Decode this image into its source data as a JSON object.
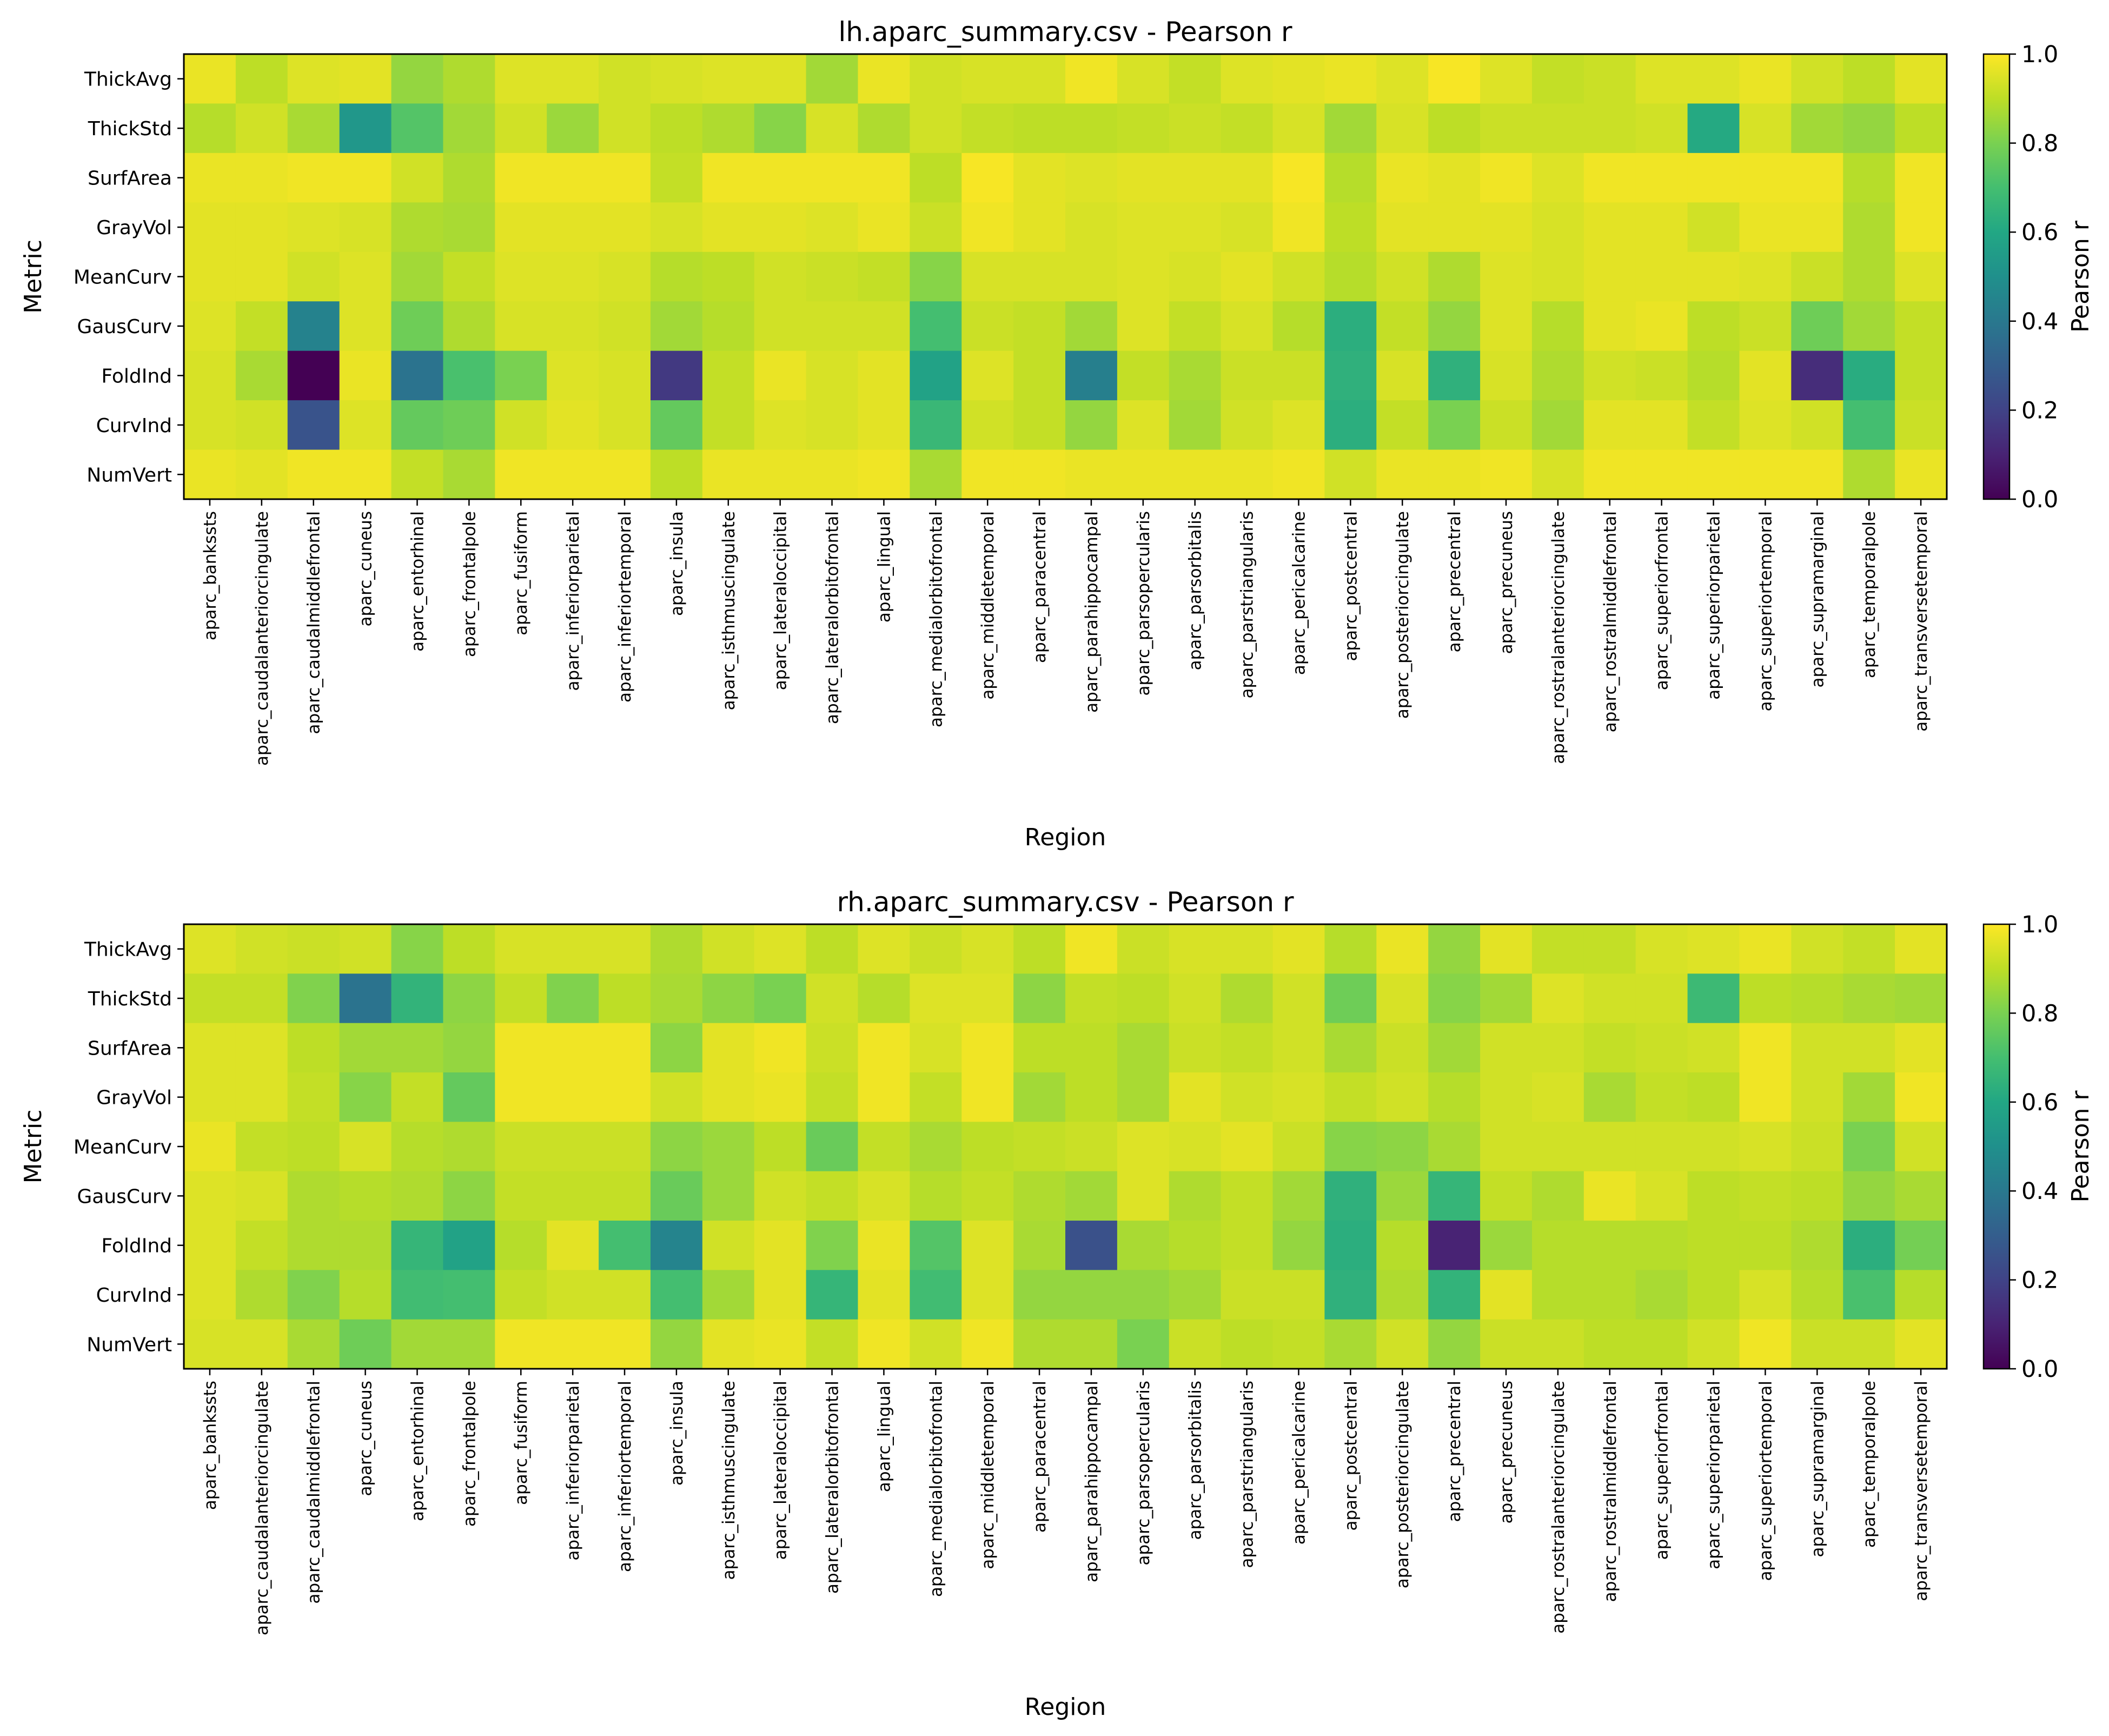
{
  "colorscale": "viridis",
  "chart_data": [
    {
      "type": "heatmap",
      "title": "lh.aparc_summary.csv - Pearson r",
      "xlabel": "Region",
      "ylabel": "Metric",
      "colorbar_label": "Pearson r",
      "vmin": 0.0,
      "vmax": 1.0,
      "colorbar_ticks": [
        "0.0",
        "0.2",
        "0.4",
        "0.6",
        "0.8",
        "1.0"
      ],
      "rows": [
        "ThickAvg",
        "ThickStd",
        "SurfArea",
        "GrayVol",
        "MeanCurv",
        "GausCurv",
        "FoldInd",
        "CurvInd",
        "NumVert"
      ],
      "columns": [
        "aparc_bankssts",
        "aparc_caudalanteriorcingulate",
        "aparc_caudalmiddlefrontal",
        "aparc_cuneus",
        "aparc_entorhinal",
        "aparc_frontalpole",
        "aparc_fusiform",
        "aparc_inferiorparietal",
        "aparc_inferiortemporal",
        "aparc_insula",
        "aparc_isthmuscingulate",
        "aparc_lateraloccipital",
        "aparc_lateralorbitofrontal",
        "aparc_lingual",
        "aparc_medialorbitofrontal",
        "aparc_middletemporal",
        "aparc_paracentral",
        "aparc_parahippocampal",
        "aparc_parsopercularis",
        "aparc_parsorbitalis",
        "aparc_parstriangularis",
        "aparc_pericalcarine",
        "aparc_postcentral",
        "aparc_posteriorcingulate",
        "aparc_precentral",
        "aparc_precuneus",
        "aparc_rostralanteriorcingulate",
        "aparc_rostralmiddlefrontal",
        "aparc_superiorfrontal",
        "aparc_superiorparietal",
        "aparc_superiortemporal",
        "aparc_supramarginal",
        "aparc_temporalpole",
        "aparc_transversetemporal"
      ],
      "values": [
        [
          0.97,
          0.9,
          0.95,
          0.96,
          0.84,
          0.88,
          0.95,
          0.95,
          0.93,
          0.94,
          0.95,
          0.95,
          0.86,
          0.97,
          0.93,
          0.94,
          0.94,
          0.98,
          0.94,
          0.91,
          0.95,
          0.96,
          0.97,
          0.95,
          0.99,
          0.95,
          0.91,
          0.92,
          0.95,
          0.95,
          0.97,
          0.93,
          0.9,
          0.96
        ],
        [
          0.89,
          0.93,
          0.87,
          0.53,
          0.73,
          0.86,
          0.93,
          0.85,
          0.93,
          0.9,
          0.88,
          0.82,
          0.94,
          0.88,
          0.93,
          0.91,
          0.9,
          0.9,
          0.91,
          0.92,
          0.91,
          0.94,
          0.86,
          0.94,
          0.9,
          0.92,
          0.92,
          0.92,
          0.93,
          0.61,
          0.94,
          0.86,
          0.84,
          0.9
        ],
        [
          0.97,
          0.97,
          0.98,
          0.98,
          0.93,
          0.88,
          0.98,
          0.98,
          0.98,
          0.91,
          0.98,
          0.98,
          0.98,
          0.98,
          0.9,
          0.99,
          0.96,
          0.95,
          0.96,
          0.96,
          0.96,
          0.99,
          0.89,
          0.97,
          0.96,
          0.98,
          0.95,
          0.98,
          0.98,
          0.98,
          0.98,
          0.98,
          0.89,
          0.98
        ],
        [
          0.96,
          0.96,
          0.95,
          0.94,
          0.88,
          0.87,
          0.96,
          0.96,
          0.96,
          0.94,
          0.96,
          0.96,
          0.95,
          0.97,
          0.92,
          0.98,
          0.96,
          0.94,
          0.95,
          0.95,
          0.94,
          0.98,
          0.9,
          0.96,
          0.96,
          0.96,
          0.94,
          0.96,
          0.96,
          0.93,
          0.97,
          0.97,
          0.88,
          0.98
        ],
        [
          0.96,
          0.96,
          0.93,
          0.95,
          0.86,
          0.91,
          0.95,
          0.95,
          0.94,
          0.89,
          0.9,
          0.93,
          0.92,
          0.91,
          0.82,
          0.94,
          0.94,
          0.94,
          0.95,
          0.94,
          0.96,
          0.93,
          0.89,
          0.93,
          0.88,
          0.95,
          0.94,
          0.96,
          0.96,
          0.96,
          0.95,
          0.92,
          0.88,
          0.95
        ],
        [
          0.95,
          0.91,
          0.44,
          0.95,
          0.78,
          0.88,
          0.94,
          0.94,
          0.93,
          0.86,
          0.89,
          0.93,
          0.93,
          0.93,
          0.7,
          0.92,
          0.91,
          0.86,
          0.95,
          0.91,
          0.94,
          0.89,
          0.63,
          0.91,
          0.84,
          0.95,
          0.89,
          0.96,
          0.97,
          0.9,
          0.92,
          0.78,
          0.86,
          0.91
        ],
        [
          0.94,
          0.87,
          0.0,
          0.97,
          0.38,
          0.71,
          0.8,
          0.95,
          0.94,
          0.17,
          0.91,
          0.97,
          0.94,
          0.96,
          0.58,
          0.95,
          0.91,
          0.43,
          0.91,
          0.87,
          0.92,
          0.92,
          0.64,
          0.94,
          0.64,
          0.94,
          0.88,
          0.93,
          0.92,
          0.89,
          0.96,
          0.13,
          0.62,
          0.91
        ],
        [
          0.94,
          0.93,
          0.26,
          0.95,
          0.76,
          0.78,
          0.93,
          0.96,
          0.94,
          0.76,
          0.91,
          0.95,
          0.94,
          0.96,
          0.67,
          0.93,
          0.91,
          0.84,
          0.95,
          0.86,
          0.93,
          0.95,
          0.63,
          0.91,
          0.8,
          0.92,
          0.86,
          0.96,
          0.96,
          0.91,
          0.95,
          0.93,
          0.7,
          0.92
        ],
        [
          0.97,
          0.96,
          0.98,
          0.98,
          0.91,
          0.87,
          0.98,
          0.98,
          0.98,
          0.9,
          0.97,
          0.97,
          0.97,
          0.98,
          0.87,
          0.98,
          0.98,
          0.97,
          0.97,
          0.97,
          0.97,
          0.98,
          0.93,
          0.97,
          0.97,
          0.98,
          0.94,
          0.98,
          0.98,
          0.98,
          0.98,
          0.98,
          0.88,
          0.97
        ]
      ]
    },
    {
      "type": "heatmap",
      "title": "rh.aparc_summary.csv - Pearson r",
      "xlabel": "Region",
      "ylabel": "Metric",
      "colorbar_label": "Pearson r",
      "vmin": 0.0,
      "vmax": 1.0,
      "colorbar_ticks": [
        "0.0",
        "0.2",
        "0.4",
        "0.6",
        "0.8",
        "1.0"
      ],
      "rows": [
        "ThickAvg",
        "ThickStd",
        "SurfArea",
        "GrayVol",
        "MeanCurv",
        "GausCurv",
        "FoldInd",
        "CurvInd",
        "NumVert"
      ],
      "columns": [
        "aparc_bankssts",
        "aparc_caudalanteriorcingulate",
        "aparc_caudalmiddlefrontal",
        "aparc_cuneus",
        "aparc_entorhinal",
        "aparc_frontalpole",
        "aparc_fusiform",
        "aparc_inferiorparietal",
        "aparc_inferiortemporal",
        "aparc_insula",
        "aparc_isthmuscingulate",
        "aparc_lateraloccipital",
        "aparc_lateralorbitofrontal",
        "aparc_lingual",
        "aparc_medialorbitofrontal",
        "aparc_middletemporal",
        "aparc_paracentral",
        "aparc_parahippocampal",
        "aparc_parsopercularis",
        "aparc_parsorbitalis",
        "aparc_parstriangularis",
        "aparc_pericalcarine",
        "aparc_postcentral",
        "aparc_posteriorcingulate",
        "aparc_precentral",
        "aparc_precuneus",
        "aparc_rostralanteriorcingulate",
        "aparc_rostralmiddlefrontal",
        "aparc_superiorfrontal",
        "aparc_superiorparietal",
        "aparc_superiortemporal",
        "aparc_supramarginal",
        "aparc_temporalpole",
        "aparc_transversetemporal"
      ],
      "values": [
        [
          0.95,
          0.93,
          0.92,
          0.93,
          0.82,
          0.9,
          0.94,
          0.94,
          0.94,
          0.88,
          0.93,
          0.95,
          0.9,
          0.95,
          0.92,
          0.94,
          0.9,
          0.98,
          0.92,
          0.94,
          0.94,
          0.96,
          0.89,
          0.97,
          0.84,
          0.96,
          0.91,
          0.91,
          0.94,
          0.95,
          0.97,
          0.93,
          0.91,
          0.96
        ],
        [
          0.91,
          0.91,
          0.81,
          0.38,
          0.65,
          0.83,
          0.91,
          0.81,
          0.9,
          0.87,
          0.83,
          0.8,
          0.93,
          0.89,
          0.95,
          0.95,
          0.83,
          0.91,
          0.9,
          0.93,
          0.88,
          0.93,
          0.78,
          0.94,
          0.82,
          0.86,
          0.95,
          0.93,
          0.93,
          0.68,
          0.9,
          0.89,
          0.87,
          0.86
        ],
        [
          0.95,
          0.95,
          0.9,
          0.86,
          0.86,
          0.84,
          0.98,
          0.98,
          0.98,
          0.83,
          0.96,
          0.98,
          0.92,
          0.98,
          0.94,
          0.98,
          0.9,
          0.9,
          0.87,
          0.92,
          0.91,
          0.93,
          0.87,
          0.92,
          0.86,
          0.93,
          0.93,
          0.91,
          0.92,
          0.93,
          0.98,
          0.93,
          0.93,
          0.96
        ],
        [
          0.95,
          0.95,
          0.91,
          0.82,
          0.91,
          0.76,
          0.98,
          0.98,
          0.98,
          0.93,
          0.96,
          0.97,
          0.91,
          0.98,
          0.91,
          0.98,
          0.86,
          0.9,
          0.87,
          0.96,
          0.93,
          0.94,
          0.91,
          0.93,
          0.89,
          0.93,
          0.94,
          0.87,
          0.91,
          0.9,
          0.98,
          0.93,
          0.86,
          0.98
        ],
        [
          0.97,
          0.91,
          0.9,
          0.94,
          0.89,
          0.88,
          0.92,
          0.92,
          0.92,
          0.83,
          0.85,
          0.9,
          0.77,
          0.91,
          0.87,
          0.9,
          0.91,
          0.92,
          0.95,
          0.94,
          0.96,
          0.92,
          0.82,
          0.83,
          0.87,
          0.93,
          0.93,
          0.93,
          0.93,
          0.93,
          0.94,
          0.92,
          0.8,
          0.93
        ],
        [
          0.95,
          0.94,
          0.88,
          0.89,
          0.88,
          0.83,
          0.91,
          0.91,
          0.91,
          0.77,
          0.85,
          0.93,
          0.91,
          0.94,
          0.89,
          0.91,
          0.88,
          0.86,
          0.95,
          0.88,
          0.91,
          0.86,
          0.64,
          0.85,
          0.66,
          0.91,
          0.88,
          0.97,
          0.94,
          0.9,
          0.91,
          0.9,
          0.84,
          0.87
        ],
        [
          0.95,
          0.91,
          0.88,
          0.88,
          0.66,
          0.58,
          0.89,
          0.96,
          0.7,
          0.45,
          0.93,
          0.96,
          0.81,
          0.97,
          0.73,
          0.95,
          0.87,
          0.25,
          0.87,
          0.89,
          0.91,
          0.84,
          0.63,
          0.89,
          0.1,
          0.85,
          0.89,
          0.89,
          0.89,
          0.9,
          0.9,
          0.88,
          0.63,
          0.79
        ],
        [
          0.95,
          0.88,
          0.81,
          0.89,
          0.69,
          0.7,
          0.91,
          0.93,
          0.93,
          0.7,
          0.86,
          0.96,
          0.66,
          0.96,
          0.69,
          0.95,
          0.84,
          0.84,
          0.84,
          0.86,
          0.92,
          0.92,
          0.64,
          0.88,
          0.65,
          0.96,
          0.89,
          0.89,
          0.87,
          0.9,
          0.94,
          0.89,
          0.71,
          0.89
        ],
        [
          0.94,
          0.94,
          0.87,
          0.78,
          0.86,
          0.86,
          0.98,
          0.98,
          0.98,
          0.84,
          0.96,
          0.97,
          0.91,
          0.98,
          0.93,
          0.98,
          0.88,
          0.88,
          0.8,
          0.92,
          0.9,
          0.91,
          0.87,
          0.93,
          0.84,
          0.92,
          0.92,
          0.9,
          0.9,
          0.93,
          0.98,
          0.92,
          0.92,
          0.96
        ]
      ]
    }
  ]
}
